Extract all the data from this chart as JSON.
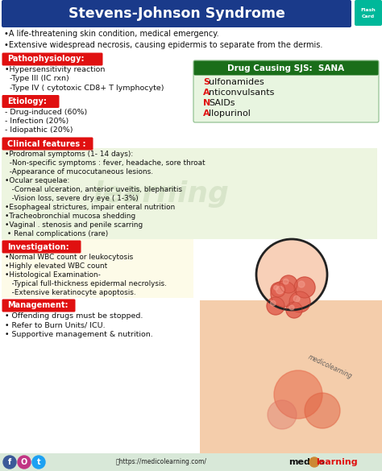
{
  "title": "Stevens-Johnson Syndrome",
  "title_bg": "#1a3a8a",
  "title_color": "#ffffff",
  "bg_color": "#ffffff",
  "intro_lines": [
    "•A life-threatening skin condition, medical emergency.",
    "•Extensive widespread necrosis, causing epidermis to separate from the dermis."
  ],
  "sections": [
    {
      "label": "Pathophysiology:",
      "label_bg": "#e01010",
      "label_color": "#ffffff",
      "content": [
        "•Hypersensitivity reaction",
        "  -Type III (IC rxn)",
        "  -Type IV ( cytotoxic CD8+ T lymphocyte)"
      ]
    },
    {
      "label": "Etiology:",
      "label_bg": "#e01010",
      "label_color": "#ffffff",
      "content": [
        "- Drug-induced (60%)",
        "- Infection (20%)",
        "- Idiopathic (20%)"
      ]
    },
    {
      "label": "Clinical features :",
      "label_bg": "#e01010",
      "label_color": "#ffffff",
      "content_bg": "#edf5e0",
      "content": [
        "•Prodromal symptoms (1- 14 days):",
        "  -Non-specific symptoms : fever, headache, sore throat",
        "  -Appearance of mucocutaneous lesions.",
        "•Ocular sequelae:",
        "   -Corneal ulceration, anterior uveitis, blepharitis",
        "   -Vision loss, severe dry eye ( 1-3%)",
        "•Esophageal strictures, impair enteral nutrition",
        "•Tracheobronchial mucosa shedding",
        "•Vaginal . stenosis and penile scarring",
        " • Renal complications (rare)"
      ]
    },
    {
      "label": "Investigation:",
      "label_bg": "#e01010",
      "label_color": "#ffffff",
      "content_bg": "#fdfbe8",
      "content": [
        "•Normal WBC count or leukocytosis",
        "•Highly elevated WBC count",
        "•Histological Examination-",
        "   -Typical full-thickness epidermal necrolysis.",
        "   -Extensive keratinocyte apoptosis."
      ]
    },
    {
      "label": "Management:",
      "label_bg": "#e01010",
      "label_color": "#ffffff",
      "content_bg": "#ffffff",
      "content": [
        "• Offending drugs must be stopped.",
        "• Refer to Burn Units/ ICU.",
        "• Supportive management & nutrition."
      ]
    }
  ],
  "drug_box": {
    "label": "Drug Causing SJS:  SANA",
    "label_bg": "#1a6e1a",
    "label_color": "#ffffff",
    "bg": "#e8f5e0",
    "border_color": "#88bb88",
    "letters": [
      "S",
      "A",
      "N",
      "A"
    ],
    "letter_color": "#e01010",
    "words": [
      "ulfonamides",
      "nticonvulsants",
      "SAIDs",
      "llopurinol"
    ],
    "word_color": "#111111"
  },
  "watermark_color": "#c8d8b8",
  "watermark_alpha": 0.55,
  "footer_bg": "#d8e8d8",
  "footer_url": "ⓘhttps://medicolearning.com/",
  "footer_brand_black": "medico",
  "footer_brand_red": "learning",
  "footer_icon_fb": "#3b5998",
  "footer_icon_ig": "#c13584",
  "footer_icon_tw": "#1da1f2"
}
